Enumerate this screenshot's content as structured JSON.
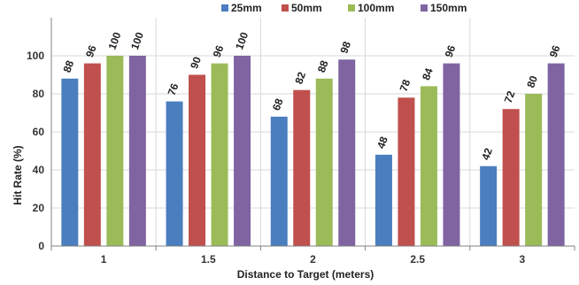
{
  "chart_data": {
    "type": "bar",
    "categories": [
      "1",
      "1.5",
      "2",
      "2.5",
      "3"
    ],
    "series": [
      {
        "name": "25mm",
        "color": "#4a7ebf",
        "values": [
          88,
          76,
          68,
          48,
          42
        ]
      },
      {
        "name": "50mm",
        "color": "#c0504d",
        "values": [
          96,
          90,
          82,
          78,
          72
        ]
      },
      {
        "name": "100mm",
        "color": "#9bbb59",
        "values": [
          100,
          96,
          88,
          84,
          80
        ]
      },
      {
        "name": "150mm",
        "color": "#8064a2",
        "values": [
          100,
          100,
          98,
          96,
          96
        ]
      }
    ],
    "title": "",
    "xlabel": "Distance to Target (meters)",
    "ylabel": "Hit Rate (%)",
    "ylim": [
      0,
      120
    ],
    "yticks": [
      0,
      20,
      40,
      60,
      80,
      100
    ],
    "grid": true,
    "legend_position": "top"
  }
}
